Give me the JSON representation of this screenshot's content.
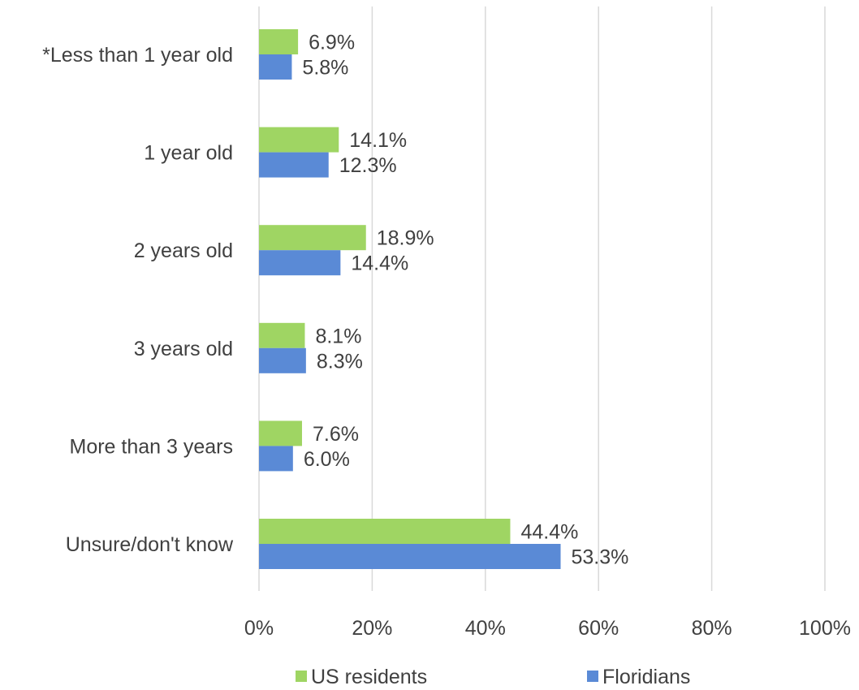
{
  "chart_data": {
    "type": "bar",
    "orientation": "horizontal",
    "categories": [
      "*Less than 1 year old",
      "1 year old",
      "2 years old",
      "3 years old",
      "More than 3 years",
      "Unsure/don't know"
    ],
    "series": [
      {
        "name": "US residents",
        "color": "#9fd563",
        "values": [
          6.9,
          14.1,
          18.9,
          8.1,
          7.6,
          44.4
        ],
        "labels": [
          "6.9%",
          "14.1%",
          "18.9%",
          "8.1%",
          "7.6%",
          "44.4%"
        ]
      },
      {
        "name": "Floridians",
        "color": "#5a8ad6",
        "values": [
          5.8,
          12.3,
          14.4,
          8.3,
          6.0,
          53.3
        ],
        "labels": [
          "5.8%",
          "12.3%",
          "14.4%",
          "8.3%",
          "6.0%",
          "53.3%"
        ]
      }
    ],
    "xlim": [
      0,
      100
    ],
    "xticks": [
      0,
      20,
      40,
      60,
      80,
      100
    ],
    "xtick_labels": [
      "0%",
      "20%",
      "40%",
      "60%",
      "80%",
      "100%"
    ],
    "grid": true,
    "legend_position": "bottom",
    "title": "",
    "xlabel": "",
    "ylabel": ""
  }
}
